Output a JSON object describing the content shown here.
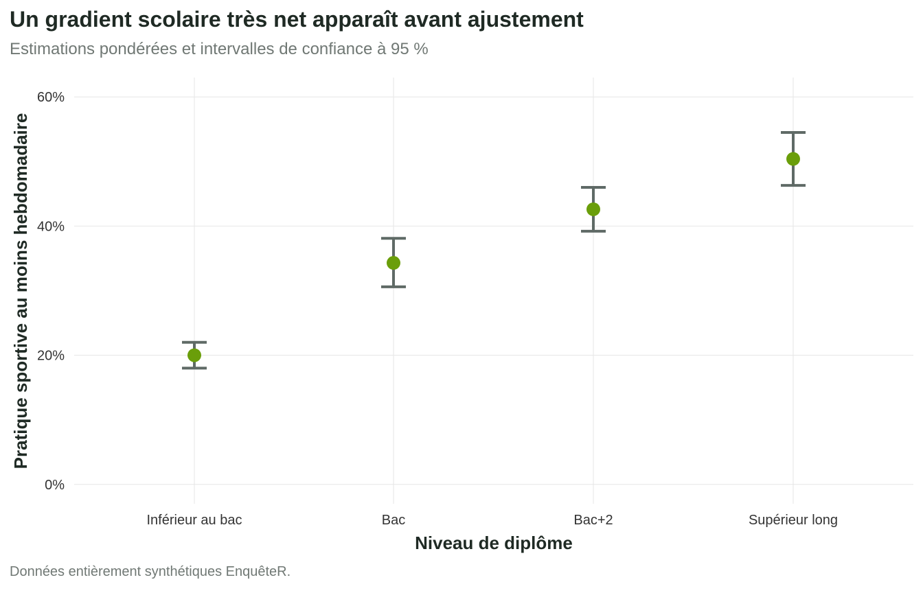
{
  "title": "Un gradient scolaire très net apparaît avant ajustement",
  "subtitle": "Estimations pondérées et intervalles de confiance à 95 %",
  "caption": "Données entièrement synthétiques EnquêteR.",
  "colors": {
    "point": "#6a9e0a",
    "errorbar": "#5f6a66",
    "grid": "#e6e6e6"
  },
  "chart_data": {
    "type": "scatter",
    "xlabel": "Niveau de diplôme",
    "ylabel": "Pratique sportive au moins hebdomadaire",
    "categories": [
      "Inférieur au bac",
      "Bac",
      "Bac+2",
      "Supérieur long"
    ],
    "values": [
      20.0,
      34.3,
      42.6,
      50.4
    ],
    "ci_low": [
      18.0,
      30.6,
      39.2,
      46.3
    ],
    "ci_high": [
      22.0,
      38.1,
      46.0,
      54.5
    ],
    "ylim": [
      -3,
      63
    ],
    "y_ticks": [
      0,
      20,
      40,
      60
    ],
    "y_tick_labels": [
      "0%",
      "20%",
      "40%",
      "60%"
    ],
    "grid": true,
    "legend": "none"
  }
}
